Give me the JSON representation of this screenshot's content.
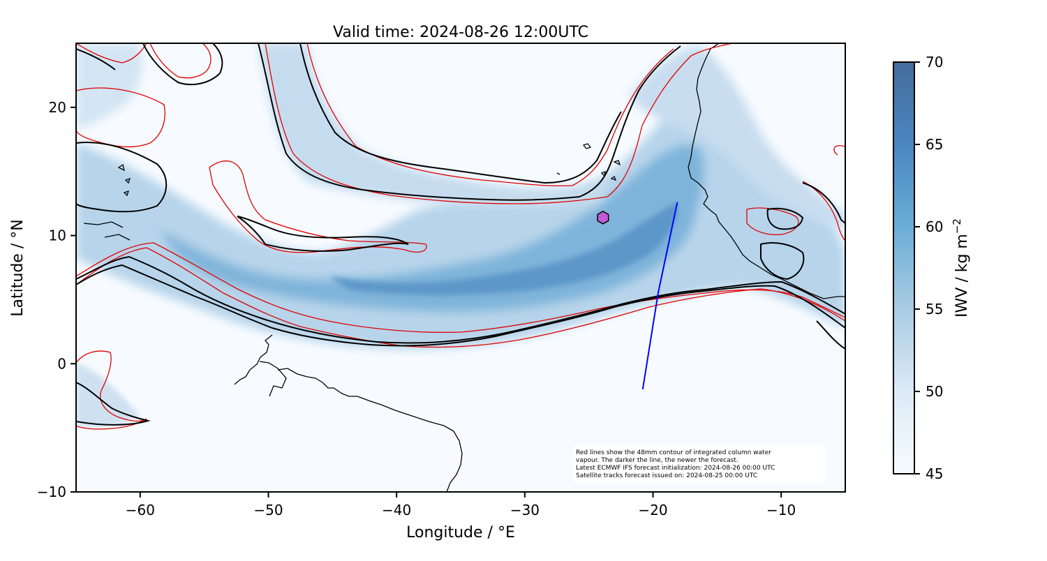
{
  "title": "Valid time: 2024-08-26 12:00UTC",
  "xlabel": "Longitude / °E",
  "ylabel": "Latitude / °N",
  "xlim": [
    -65,
    -5
  ],
  "ylim": [
    -10,
    25
  ],
  "x_ticks": [
    {
      "value": -60,
      "label": "−60"
    },
    {
      "value": -50,
      "label": "−50"
    },
    {
      "value": -40,
      "label": "−40"
    },
    {
      "value": -30,
      "label": "−30"
    },
    {
      "value": -20,
      "label": "−20"
    },
    {
      "value": -10,
      "label": "−10"
    }
  ],
  "y_ticks": [
    {
      "value": -10,
      "label": "−10"
    },
    {
      "value": 0,
      "label": "0"
    },
    {
      "value": 10,
      "label": "10"
    },
    {
      "value": 20,
      "label": "20"
    }
  ],
  "colorbar": {
    "label": "IWV / kg m",
    "label_superscript": "−2",
    "min": 45,
    "max": 70,
    "ticks": [
      {
        "value": 45,
        "label": "45"
      },
      {
        "value": 50,
        "label": "50"
      },
      {
        "value": 55,
        "label": "55"
      },
      {
        "value": 60,
        "label": "60"
      },
      {
        "value": 65,
        "label": "65"
      },
      {
        "value": 70,
        "label": "70"
      }
    ],
    "colors": [
      "#f7fbff",
      "#dceaf6",
      "#a9cce3",
      "#6baed6",
      "#4a86c0",
      "#456c9c"
    ]
  },
  "note": [
    "Red lines show the 48mm contour of integrated column water",
    "vapour. The darker the line, the newer the forecast.",
    "Latest ECMWF IFS forecast initialization: 2024-08-26 00:00 UTC",
    "Satellite tracks forecast issued on: 2024-08-25 00:00 UTC"
  ],
  "chart_data": {
    "type": "heatmap",
    "satellite_track": {
      "color": "#0000ff",
      "points": [
        [
          -18.1,
          12.6
        ],
        [
          -19.6,
          5.5
        ],
        [
          -20.8,
          -2.0
        ]
      ]
    },
    "marker": {
      "shape": "hexagon",
      "color": "#c15ad6",
      "lon": -23.9,
      "lat": 11.4
    },
    "contour_color_old": "#e00000",
    "contour_color_new": "#000000"
  }
}
